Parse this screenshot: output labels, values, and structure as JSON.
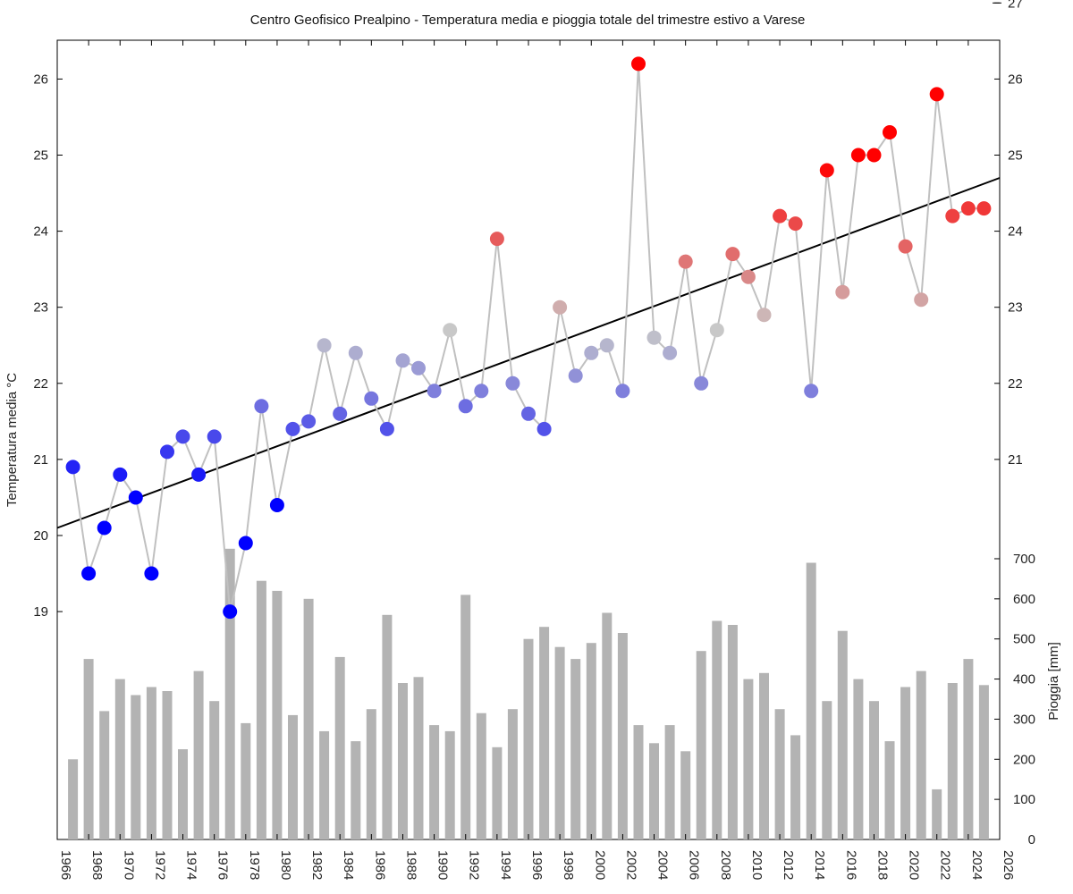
{
  "chart_data": {
    "type": "line+bar",
    "title": "Centro Geofisico Prealpino - Temperatura media e pioggia totale del trimestre estivo a Varese",
    "ylabel_left": "Temperatura media °C",
    "ylabel_right": "Pioggia [mm]",
    "xlim": [
      1966,
      2026
    ],
    "x_ticks": [
      "1966",
      "1968",
      "1970",
      "1972",
      "1974",
      "1976",
      "1978",
      "1980",
      "1982",
      "1984",
      "1986",
      "1988",
      "1990",
      "1992",
      "1994",
      "1996",
      "1998",
      "2000",
      "2002",
      "2004",
      "2006",
      "2008",
      "2010",
      "2012",
      "2014",
      "2016",
      "2018",
      "2020",
      "2022",
      "2024",
      "2026"
    ],
    "ylim_left": [
      18,
      26.5
    ],
    "y_ticks_left": [
      "19",
      "20",
      "21",
      "22",
      "23",
      "24",
      "25",
      "26"
    ],
    "y_ticks_right_temp": [
      "21",
      "22",
      "23",
      "24",
      "25",
      "26",
      "27"
    ],
    "y_ticks_right_rain": [
      "0",
      "100",
      "200",
      "300",
      "400",
      "500",
      "600",
      "700"
    ],
    "rain_ylim": [
      0,
      700
    ],
    "colors": {
      "cold": "#0000ff",
      "warm": "#ff0000",
      "neutral": "#c8c8c8",
      "rain_bar": "#b3b3b3",
      "temp_line": "#c0c0c0",
      "trend": "#000000"
    },
    "years": [
      1967,
      1968,
      1969,
      1970,
      1971,
      1972,
      1973,
      1974,
      1975,
      1976,
      1977,
      1978,
      1979,
      1980,
      1981,
      1982,
      1983,
      1984,
      1985,
      1986,
      1987,
      1988,
      1989,
      1990,
      1991,
      1992,
      1993,
      1994,
      1995,
      1996,
      1997,
      1998,
      1999,
      2000,
      2001,
      2002,
      2003,
      2004,
      2005,
      2006,
      2007,
      2008,
      2009,
      2010,
      2011,
      2012,
      2013,
      2014,
      2015,
      2016,
      2017,
      2018,
      2019,
      2020,
      2021,
      2022,
      2023,
      2024,
      2025
    ],
    "temperature": [
      20.9,
      19.5,
      20.1,
      20.8,
      20.5,
      19.5,
      21.1,
      21.3,
      20.8,
      21.3,
      19.0,
      19.9,
      21.7,
      20.4,
      21.4,
      21.5,
      22.5,
      21.6,
      22.4,
      21.8,
      21.4,
      22.3,
      22.2,
      21.9,
      22.7,
      21.7,
      21.9,
      23.9,
      22.0,
      21.6,
      21.4,
      23.0,
      22.1,
      22.4,
      22.5,
      21.9,
      26.2,
      22.6,
      22.4,
      23.6,
      22.0,
      22.7,
      23.7,
      23.4,
      22.9,
      24.2,
      24.1,
      21.9,
      24.8,
      23.2,
      25.0,
      25.0,
      25.3,
      23.8,
      23.1,
      25.8,
      24.2,
      24.3,
      24.3
    ],
    "rainfall": [
      200,
      450,
      320,
      400,
      360,
      380,
      370,
      225,
      420,
      345,
      725,
      290,
      645,
      620,
      310,
      600,
      270,
      455,
      245,
      325,
      560,
      390,
      405,
      285,
      270,
      610,
      315,
      230,
      325,
      500,
      530,
      480,
      450,
      490,
      565,
      515,
      285,
      240,
      285,
      220,
      470,
      545,
      535,
      400,
      415,
      325,
      260,
      690,
      345,
      520,
      400,
      345,
      245,
      380,
      420,
      125,
      390,
      450,
      385
    ],
    "trend": {
      "start": [
        1966,
        20.1
      ],
      "end": [
        2026,
        24.7
      ]
    }
  }
}
